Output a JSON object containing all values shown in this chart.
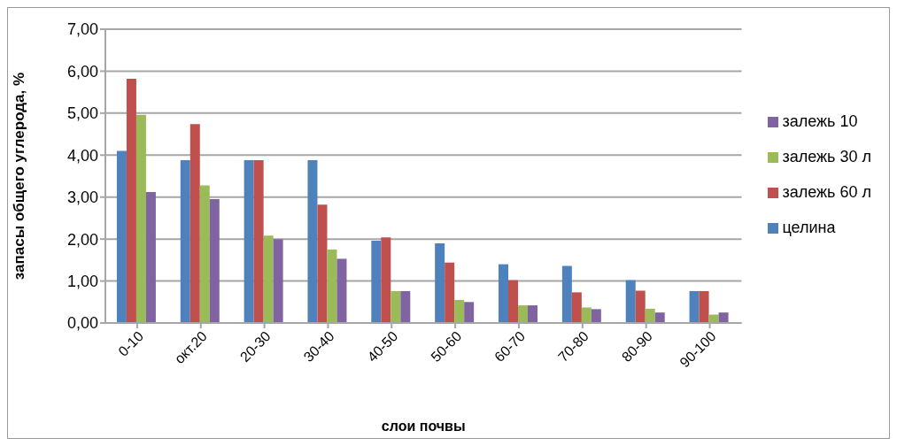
{
  "chart_data": {
    "type": "bar",
    "xlabel": "слои почвы",
    "ylabel": "запасы общего углерода, %",
    "categories": [
      "0-10",
      "окт.20",
      "20-30",
      "30-40",
      "40-50",
      "50-60",
      "60-70",
      "70-80",
      "80-90",
      "90-100"
    ],
    "series": [
      {
        "name": "целина",
        "color": "#4f81bd",
        "values": [
          4.1,
          3.88,
          3.88,
          3.88,
          1.96,
          1.9,
          1.4,
          1.36,
          1.02,
          0.76
        ]
      },
      {
        "name": "залежь 60 л",
        "color": "#c0504d",
        "values": [
          5.82,
          4.74,
          3.88,
          2.82,
          2.04,
          1.44,
          1.02,
          0.73,
          0.77,
          0.76
        ]
      },
      {
        "name": "залежь 30 л",
        "color": "#9bbb59",
        "values": [
          4.96,
          3.28,
          2.08,
          1.75,
          0.76,
          0.55,
          0.42,
          0.37,
          0.34,
          0.2
        ]
      },
      {
        "name": "залежь 10",
        "color": "#8064a2",
        "values": [
          3.12,
          2.95,
          2.0,
          1.53,
          0.76,
          0.5,
          0.42,
          0.33,
          0.25,
          0.25
        ]
      }
    ],
    "ylim": [
      0,
      7
    ],
    "yticks": [
      {
        "value": 0,
        "label": "0,00"
      },
      {
        "value": 1,
        "label": "1,00"
      },
      {
        "value": 2,
        "label": "2,00"
      },
      {
        "value": 3,
        "label": "3,00"
      },
      {
        "value": 4,
        "label": "4,00"
      },
      {
        "value": 5,
        "label": "5,00"
      },
      {
        "value": 6,
        "label": "6,00"
      },
      {
        "value": 7,
        "label": "7,00"
      }
    ],
    "grid": "y",
    "legend": "right"
  }
}
